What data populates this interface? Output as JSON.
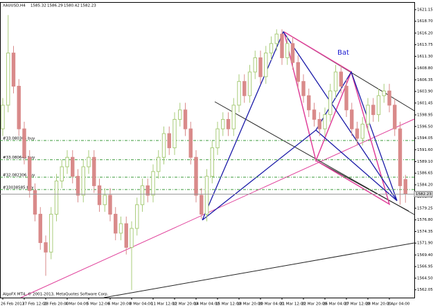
{
  "chart_data": {
    "type": "candlestick",
    "symbol": "XAUUSD,H4",
    "footer": "AlgoFX MT4, © 2001-2013, MetaQuotes Software Corp.",
    "pattern_label": "Bat",
    "up_color": "#a9cc7a",
    "down_color": "#d98a8a",
    "categories": [
      "26 Feb 2013",
      null,
      null,
      null,
      "27 Feb 12:00",
      null,
      null,
      null,
      "28 Feb 20:00",
      null,
      null,
      null,
      "4 Mar 04:00",
      null,
      null,
      null,
      "5 Mar 12:00",
      null,
      null,
      null,
      "6 Mar 20:00",
      null,
      null,
      null,
      "8 Mar 04:00",
      null,
      null,
      null,
      "11 Mar 12:00",
      null,
      null,
      null,
      "12 Mar 20:00",
      null,
      null,
      null,
      "14 Mar 04:00",
      null,
      null,
      null,
      "15 Mar 12:00",
      null,
      null,
      null,
      "18 Mar 20:00",
      null,
      null,
      null,
      "20 Mar 04:00",
      null,
      null,
      null,
      "21 Mar 12:00",
      null,
      null,
      null,
      "22 Mar 20:00",
      null,
      null,
      null,
      "26 Mar 04:00",
      null,
      null,
      null,
      "27 Mar 12:00",
      null,
      null,
      null,
      "28 Mar 20:00",
      null,
      null,
      null,
      "2 Apr 04:00",
      null,
      null,
      null
    ],
    "open": [
      1596,
      1601,
      1612,
      1605,
      1596,
      1590,
      1583,
      1578,
      1572,
      1570,
      1578,
      1585,
      1588,
      1590,
      1586,
      1582,
      1588,
      1590,
      1584,
      1580,
      1582,
      1578,
      1574,
      1576,
      1571,
      1575,
      1580,
      1584,
      1582,
      1587,
      1590,
      1595,
      1592,
      1598,
      1600,
      1596,
      1590,
      1582,
      1578,
      1586,
      1592,
      1596,
      1598,
      1596,
      1601,
      1606,
      1603,
      1608,
      1611,
      1607,
      1612,
      1614,
      1616,
      1611,
      1614,
      1610,
      1606,
      1603,
      1600,
      1598,
      1596,
      1599,
      1604,
      1608,
      1605,
      1600,
      1596,
      1594,
      1597,
      1601,
      1599,
      1603,
      1604,
      1601,
      1596,
      1585.32
    ],
    "high": [
      1602.5,
      1620,
      1613.5,
      1606.5,
      1597.5,
      1591.5,
      1584.5,
      1579.5,
      1573.5,
      1579.5,
      1586.5,
      1589.5,
      1591.5,
      1591.5,
      1587.5,
      1589.5,
      1591.5,
      1591.5,
      1585.5,
      1583.5,
      1583.5,
      1579.5,
      1577.5,
      1577.5,
      1576.5,
      1581.5,
      1585.5,
      1585.5,
      1588.5,
      1591.5,
      1596.5,
      1596.5,
      1599.5,
      1601.5,
      1601.5,
      1597.5,
      1591.5,
      1583.5,
      1587.5,
      1593.5,
      1597.5,
      1599.5,
      1599.5,
      1602.5,
      1607.5,
      1607.5,
      1609.5,
      1612.5,
      1612.5,
      1613.5,
      1615.5,
      1617,
      1617,
      1615.5,
      1615.5,
      1611.5,
      1607.5,
      1604.5,
      1601.5,
      1599.5,
      1600.5,
      1605.5,
      1609.5,
      1609.5,
      1606.5,
      1601.5,
      1597.5,
      1598.5,
      1602.5,
      1602.5,
      1604.5,
      1605.5,
      1605.5,
      1602.5,
      1597.5,
      1586.29
    ],
    "low": [
      1594.5,
      1599.5,
      1603.5,
      1594.5,
      1588.5,
      1581.5,
      1576.5,
      1570.5,
      1565,
      1568.5,
      1576.5,
      1583.5,
      1586.5,
      1584.5,
      1580.5,
      1580.5,
      1586.5,
      1582.5,
      1578.5,
      1578.5,
      1576.5,
      1572.5,
      1572.5,
      1569.5,
      1562,
      1573.5,
      1578.5,
      1580.5,
      1580.5,
      1585.5,
      1588.5,
      1590.5,
      1590.5,
      1596.5,
      1594.5,
      1588.5,
      1580.5,
      1577,
      1576.5,
      1584.5,
      1590.5,
      1594.5,
      1594.5,
      1594.5,
      1599.5,
      1601.5,
      1601.5,
      1606.5,
      1605.5,
      1605.5,
      1610.5,
      1612.5,
      1609.5,
      1609.5,
      1608.5,
      1604.5,
      1601.5,
      1598.5,
      1596.5,
      1594.5,
      1594.5,
      1597.5,
      1602.5,
      1603.5,
      1598.5,
      1594.5,
      1592.5,
      1592.5,
      1595.5,
      1597.5,
      1597.5,
      1601.5,
      1599.5,
      1594.5,
      1580,
      1580.42
    ],
    "close": [
      1601,
      1612,
      1605,
      1596,
      1590,
      1583,
      1578,
      1572,
      1570,
      1578,
      1585,
      1588,
      1590,
      1586,
      1582,
      1588,
      1590,
      1584,
      1580,
      1582,
      1578,
      1574,
      1576,
      1571,
      1575,
      1580,
      1584,
      1582,
      1587,
      1590,
      1595,
      1592,
      1598,
      1600,
      1596,
      1590,
      1582,
      1578,
      1586,
      1592,
      1596,
      1598,
      1596,
      1601,
      1606,
      1603,
      1608,
      1611,
      1607,
      1612,
      1614,
      1616,
      1611,
      1614,
      1610,
      1606,
      1603,
      1600,
      1598,
      1596,
      1599,
      1604,
      1608,
      1605,
      1600,
      1596,
      1594,
      1597,
      1601,
      1599,
      1603,
      1604,
      1601,
      1596,
      1584,
      1582.23
    ],
    "ylim": [
      1560.4,
      1622.6
    ],
    "yticks": [
      1621.15,
      {
        "value": 1618.7,
        "label": "1618.70"
      },
      {
        "value": 1616.2,
        "label": "1616.20"
      },
      1613.75,
      {
        "value": 1611.3,
        "label": "1611.30"
      },
      {
        "value": 1608.8,
        "label": "1608.80"
      },
      1606.35,
      {
        "value": 1603.9,
        "label": "1603.90"
      },
      1601.45,
      1598.95,
      {
        "value": 1596.5,
        "label": "1596.50"
      },
      1594.05,
      {
        "value": 1591.6,
        "label": "1591.60"
      },
      {
        "value": 1589.1,
        "label": "1589.10"
      },
      1586.65,
      {
        "value": 1584.2,
        "label": "1584.20"
      },
      1581.75,
      1579.25,
      {
        "value": 1576.8,
        "label": "1576.80"
      },
      1574.35,
      {
        "value": 1571.9,
        "label": "1571.90"
      },
      {
        "value": 1569.4,
        "label": "1569.40"
      },
      1566.95,
      {
        "value": 1564.5,
        "label": "1564.50"
      },
      1562.05
    ],
    "orders": [
      {
        "label": "#33.080305 buy",
        "price": 1593.55
      },
      {
        "label": "#33.080648 buy",
        "price": 1589.5
      },
      {
        "label": "#32.082306 buy",
        "price": 1585.8
      },
      {
        "label": "#33038585 buy",
        "price": 1583.2
      }
    ]
  }
}
